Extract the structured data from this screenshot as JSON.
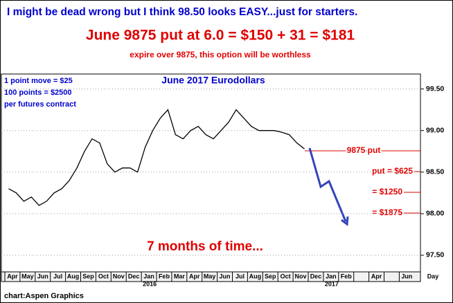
{
  "chart_data": {
    "type": "line",
    "title": "I might be dead wrong but I think 98.50 looks EASY...just for starters.",
    "subtitle": "June 9875 put at 6.0 = $150 + 31 = $181",
    "note": "expire over 9875, this option will be worthless",
    "chart_label": "June 2017 Eurodollars",
    "info": [
      "1 point move = $25",
      "100 points = $2500",
      "per futures contract"
    ],
    "annotations": [
      "9875 put",
      "put = $625",
      "= $1250",
      "= $1875",
      "7 months of time..."
    ],
    "source": "chart:Aspen Graphics",
    "x_unit_label": "Day",
    "year_labels": [
      "2016",
      "2017"
    ],
    "categories": [
      "Apr",
      null,
      "May",
      null,
      "Jun",
      null,
      "Jul",
      null,
      "Aug",
      null,
      "Sep",
      null,
      "Oct",
      null,
      "Nov",
      null,
      "Dec",
      null,
      "Jan",
      null,
      "Feb",
      null,
      "Mar",
      null,
      "Apr",
      null,
      "May",
      null,
      "Jun",
      null,
      "Jul",
      null,
      "Aug",
      null,
      "Sep",
      null,
      "Oct",
      null,
      "Nov",
      null,
      "Dec",
      null,
      "Jan",
      null,
      "Feb",
      null,
      null,
      null,
      "Apr",
      null,
      null,
      null,
      "Jun",
      null
    ],
    "series": [
      {
        "name": "June 2017 Eurodollars",
        "color": "#000000",
        "values": [
          98.3,
          98.25,
          98.15,
          98.2,
          98.1,
          98.15,
          98.25,
          98.3,
          98.4,
          98.55,
          98.75,
          98.9,
          98.85,
          98.6,
          98.5,
          98.55,
          98.55,
          98.5,
          98.8,
          99.0,
          99.15,
          99.25,
          98.95,
          98.9,
          99.0,
          99.05,
          98.95,
          98.9,
          99.0,
          99.1,
          99.25,
          99.15,
          99.05,
          99.0,
          99.0,
          99.0,
          98.98,
          98.95,
          98.85,
          98.78,
          null,
          null,
          null,
          null,
          null,
          null,
          null,
          null,
          null,
          null,
          null,
          null,
          null,
          null
        ]
      }
    ],
    "ylim": [
      97.3,
      99.68
    ],
    "yticks": [
      {
        "value": 97.5,
        "label": "97.50"
      },
      {
        "value": 98,
        "label": "98.00"
      },
      {
        "value": 98.5,
        "label": "98.50"
      },
      {
        "value": 99,
        "label": "99.00"
      },
      {
        "value": 99.5,
        "label": "99.50"
      }
    ],
    "grid": true
  }
}
